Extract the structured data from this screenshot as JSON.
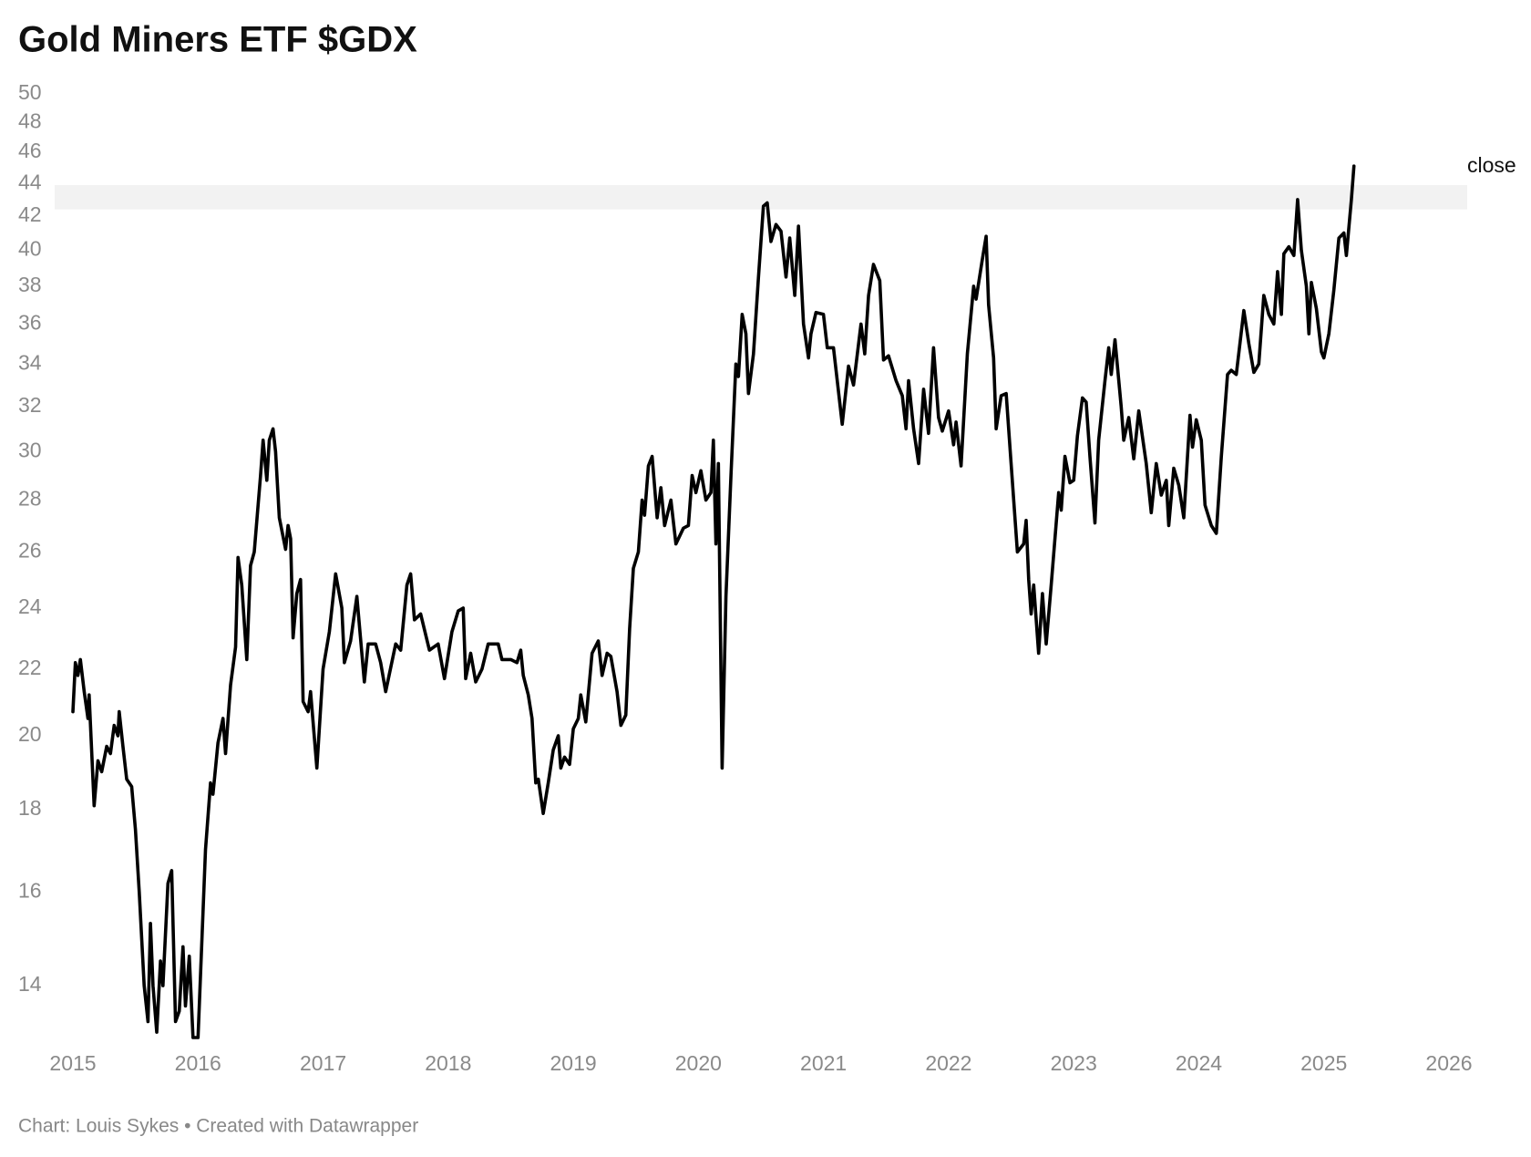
{
  "chart_data": {
    "type": "line",
    "title": "Gold Miners ETF $GDX",
    "source": "Chart: Louis Sykes • Created with Datawrapper",
    "log_y": true,
    "xlim": [
      2015,
      2026
    ],
    "xticks": [
      2015,
      2016,
      2017,
      2018,
      2019,
      2020,
      2021,
      2022,
      2023,
      2024,
      2025,
      2026
    ],
    "ylim": [
      13,
      50
    ],
    "yticks": [
      14,
      16,
      18,
      20,
      22,
      24,
      26,
      28,
      30,
      32,
      34,
      36,
      38,
      40,
      42,
      44,
      46,
      48,
      50
    ],
    "highlight_range": [
      42.4,
      43.9
    ],
    "highlight_color": "#f2f2f2",
    "x": [
      2015.0,
      2015.02,
      2015.04,
      2015.06,
      2015.09,
      2015.12,
      2015.13,
      2015.17,
      2015.2,
      2015.23,
      2015.27,
      2015.3,
      2015.33,
      2015.36,
      2015.37,
      2015.4,
      2015.43,
      2015.47,
      2015.5,
      2015.53,
      2015.57,
      2015.6,
      2015.62,
      2015.64,
      2015.67,
      2015.7,
      2015.72,
      2015.76,
      2015.79,
      2015.82,
      2015.85,
      2015.88,
      2015.9,
      2015.93,
      2015.96,
      2016.0,
      2016.06,
      2016.1,
      2016.12,
      2016.16,
      2016.2,
      2016.22,
      2016.26,
      2016.3,
      2016.32,
      2016.35,
      2016.39,
      2016.42,
      2016.45,
      2016.5,
      2016.52,
      2016.55,
      2016.57,
      2016.6,
      2016.62,
      2016.65,
      2016.7,
      2016.72,
      2016.74,
      2016.76,
      2016.79,
      2016.82,
      2016.84,
      2016.88,
      2016.9,
      2016.95,
      2017.0,
      2017.05,
      2017.1,
      2017.15,
      2017.17,
      2017.22,
      2017.27,
      2017.33,
      2017.36,
      2017.42,
      2017.46,
      2017.5,
      2017.58,
      2017.62,
      2017.67,
      2017.7,
      2017.73,
      2017.78,
      2017.85,
      2017.92,
      2017.97,
      2018.03,
      2018.08,
      2018.12,
      2018.14,
      2018.18,
      2018.22,
      2018.27,
      2018.32,
      2018.4,
      2018.43,
      2018.5,
      2018.55,
      2018.58,
      2018.6,
      2018.64,
      2018.67,
      2018.7,
      2018.72,
      2018.76,
      2018.8,
      2018.84,
      2018.88,
      2018.9,
      2018.93,
      2018.97,
      2019.0,
      2019.04,
      2019.06,
      2019.1,
      2019.15,
      2019.2,
      2019.23,
      2019.27,
      2019.3,
      2019.35,
      2019.38,
      2019.42,
      2019.45,
      2019.48,
      2019.52,
      2019.55,
      2019.57,
      2019.6,
      2019.63,
      2019.67,
      2019.7,
      2019.73,
      2019.78,
      2019.82,
      2019.88,
      2019.92,
      2019.95,
      2019.98,
      2020.02,
      2020.06,
      2020.1,
      2020.12,
      2020.14,
      2020.16,
      2020.19,
      2020.22,
      2020.26,
      2020.3,
      2020.32,
      2020.35,
      2020.38,
      2020.4,
      2020.44,
      2020.48,
      2020.52,
      2020.55,
      2020.58,
      2020.62,
      2020.66,
      2020.7,
      2020.73,
      2020.77,
      2020.8,
      2020.84,
      2020.88,
      2020.9,
      2020.94,
      2021.0,
      2021.03,
      2021.08,
      2021.15,
      2021.2,
      2021.24,
      2021.3,
      2021.33,
      2021.36,
      2021.4,
      2021.45,
      2021.48,
      2021.52,
      2021.58,
      2021.63,
      2021.66,
      2021.68,
      2021.72,
      2021.76,
      2021.8,
      2021.84,
      2021.88,
      2021.92,
      2021.95,
      2022.0,
      2022.04,
      2022.06,
      2022.1,
      2022.15,
      2022.2,
      2022.22,
      2022.27,
      2022.3,
      2022.32,
      2022.36,
      2022.38,
      2022.42,
      2022.46,
      2022.5,
      2022.55,
      2022.6,
      2022.62,
      2022.64,
      2022.66,
      2022.68,
      2022.72,
      2022.75,
      2022.78,
      2022.82,
      2022.88,
      2022.9,
      2022.93,
      2022.97,
      2023.0,
      2023.03,
      2023.07,
      2023.1,
      2023.13,
      2023.17,
      2023.2,
      2023.25,
      2023.28,
      2023.3,
      2023.33,
      2023.38,
      2023.4,
      2023.44,
      2023.48,
      2023.52,
      2023.58,
      2023.62,
      2023.66,
      2023.7,
      2023.74,
      2023.76,
      2023.8,
      2023.84,
      2023.88,
      2023.93,
      2023.95,
      2023.98,
      2024.02,
      2024.05,
      2024.1,
      2024.14,
      2024.18,
      2024.23,
      2024.26,
      2024.3,
      2024.36,
      2024.4,
      2024.44,
      2024.48,
      2024.52,
      2024.56,
      2024.6,
      2024.63,
      2024.66,
      2024.68,
      2024.72,
      2024.76,
      2024.79,
      2024.82,
      2024.86,
      2024.88,
      2024.9,
      2024.94,
      2024.98,
      2025.0,
      2025.04,
      2025.08,
      2025.12,
      2025.16,
      2025.18,
      2025.22,
      2025.24
    ],
    "series": [
      {
        "name": "close",
        "color": "#000000",
        "values": [
          20.7,
          22.2,
          21.8,
          22.3,
          21.3,
          20.5,
          21.2,
          18.1,
          19.3,
          19.0,
          19.7,
          19.5,
          20.3,
          20.0,
          20.7,
          19.7,
          18.8,
          18.6,
          17.5,
          16.0,
          14.0,
          13.3,
          15.3,
          14.0,
          13.1,
          14.5,
          14.0,
          16.2,
          16.5,
          13.3,
          13.5,
          14.8,
          13.6,
          14.6,
          13.0,
          13.0,
          17.0,
          18.7,
          18.4,
          19.8,
          20.5,
          19.5,
          21.5,
          22.7,
          25.8,
          24.8,
          22.3,
          25.5,
          26.0,
          29.0,
          30.5,
          28.8,
          30.5,
          31.0,
          30.0,
          27.3,
          26.1,
          27.0,
          26.5,
          23.0,
          24.5,
          25.0,
          21.0,
          20.7,
          21.3,
          19.1,
          22.0,
          23.2,
          25.2,
          24.0,
          22.2,
          22.9,
          24.4,
          21.6,
          22.8,
          22.8,
          22.2,
          21.3,
          22.8,
          22.6,
          24.8,
          25.2,
          23.6,
          23.8,
          22.6,
          22.8,
          21.7,
          23.2,
          23.9,
          24.0,
          21.7,
          22.5,
          21.6,
          22.0,
          22.8,
          22.8,
          22.3,
          22.3,
          22.2,
          22.6,
          21.8,
          21.2,
          20.5,
          18.7,
          18.8,
          17.9,
          18.7,
          19.6,
          20.0,
          19.1,
          19.4,
          19.2,
          20.2,
          20.5,
          21.2,
          20.4,
          22.5,
          22.9,
          21.8,
          22.5,
          22.4,
          21.3,
          20.3,
          20.6,
          23.3,
          25.4,
          26.0,
          28.0,
          27.4,
          29.4,
          29.8,
          27.3,
          28.5,
          27.0,
          28.0,
          26.3,
          26.9,
          27.0,
          29.0,
          28.3,
          29.2,
          28.0,
          28.3,
          30.5,
          26.3,
          29.5,
          19.1,
          24.4,
          29.0,
          34.0,
          33.4,
          36.5,
          35.5,
          32.6,
          34.5,
          38.5,
          42.6,
          42.8,
          40.5,
          41.5,
          41.1,
          38.5,
          40.7,
          37.5,
          41.4,
          36.0,
          34.3,
          35.5,
          36.6,
          36.5,
          34.8,
          34.8,
          31.2,
          33.9,
          33.0,
          36.0,
          34.5,
          37.5,
          39.2,
          38.3,
          34.2,
          34.4,
          33.2,
          32.5,
          31.0,
          33.2,
          31.0,
          29.5,
          32.8,
          30.8,
          34.8,
          31.5,
          30.9,
          31.8,
          30.3,
          31.3,
          29.4,
          34.5,
          38.0,
          37.3,
          39.5,
          40.8,
          37.0,
          34.3,
          31.0,
          32.5,
          32.6,
          29.5,
          26.0,
          26.3,
          27.2,
          25.0,
          23.8,
          24.8,
          22.5,
          24.5,
          22.8,
          24.8,
          28.3,
          27.6,
          29.8,
          28.7,
          28.8,
          30.7,
          32.4,
          32.2,
          29.8,
          27.1,
          30.5,
          33.2,
          34.8,
          33.5,
          35.2,
          32.0,
          30.5,
          31.5,
          29.7,
          31.8,
          29.5,
          27.5,
          29.5,
          28.2,
          28.8,
          27.0,
          29.3,
          28.6,
          27.3,
          31.6,
          30.2,
          31.4,
          30.5,
          27.8,
          27.0,
          26.7,
          29.8,
          33.5,
          33.7,
          33.5,
          36.7,
          35.0,
          33.6,
          34.0,
          37.5,
          36.5,
          36.0,
          38.8,
          36.5,
          39.8,
          40.2,
          39.7,
          43.0,
          40.0,
          38.0,
          35.5,
          38.2,
          36.8,
          34.6,
          34.3,
          35.5,
          37.8,
          40.7,
          41.0,
          39.7,
          43.0,
          45.1
        ]
      }
    ]
  }
}
